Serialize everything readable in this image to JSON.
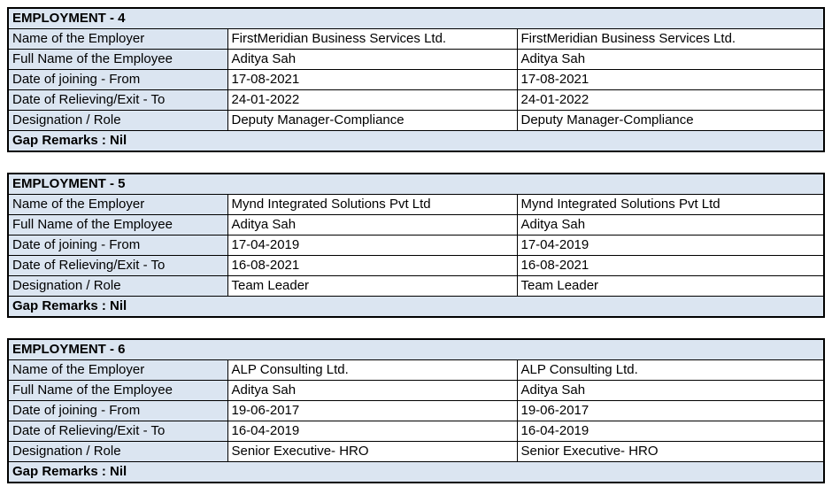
{
  "colors": {
    "shaded_bg": "#dbe5f1",
    "cell_bg": "#ffffff",
    "border": "#000000",
    "text": "#000000",
    "page_bg": "#ffffff"
  },
  "tables": [
    {
      "title": "EMPLOYMENT - 4",
      "rows": [
        {
          "label": "Name of the Employer",
          "values": [
            "FirstMeridian Business Services Ltd.",
            "FirstMeridian Business Services Ltd."
          ]
        },
        {
          "label": "Full Name of the Employee",
          "values": [
            "Aditya Sah",
            "Aditya Sah"
          ]
        },
        {
          "label": "Date of joining - From",
          "values": [
            "17-08-2021",
            "17-08-2021"
          ]
        },
        {
          "label": "Date of Relieving/Exit - To",
          "values": [
            "24-01-2022",
            "24-01-2022"
          ]
        },
        {
          "label": "Designation / Role",
          "values": [
            "Deputy Manager-Compliance",
            "Deputy Manager-Compliance"
          ]
        }
      ],
      "footer": "Gap Remarks : Nil"
    },
    {
      "title": "EMPLOYMENT - 5",
      "rows": [
        {
          "label": "Name of the Employer",
          "values": [
            "Mynd Integrated Solutions Pvt Ltd",
            "Mynd Integrated Solutions Pvt Ltd"
          ]
        },
        {
          "label": "Full Name of the Employee",
          "values": [
            "Aditya Sah",
            "Aditya Sah"
          ]
        },
        {
          "label": "Date of joining - From",
          "values": [
            "17-04-2019",
            "17-04-2019"
          ]
        },
        {
          "label": "Date of Relieving/Exit - To",
          "values": [
            "16-08-2021",
            "16-08-2021"
          ]
        },
        {
          "label": "Designation / Role",
          "values": [
            "Team Leader",
            "Team Leader"
          ]
        }
      ],
      "footer": "Gap Remarks : Nil"
    },
    {
      "title": "EMPLOYMENT - 6",
      "rows": [
        {
          "label": "Name of the Employer",
          "values": [
            "ALP Consulting Ltd.",
            "ALP Consulting Ltd."
          ]
        },
        {
          "label": "Full Name of the Employee",
          "values": [
            "Aditya Sah",
            "Aditya Sah"
          ]
        },
        {
          "label": "Date of joining - From",
          "values": [
            "19-06-2017",
            "19-06-2017"
          ]
        },
        {
          "label": "Date of Relieving/Exit - To",
          "values": [
            "16-04-2019",
            "16-04-2019"
          ]
        },
        {
          "label": "Designation / Role",
          "values": [
            "Senior Executive- HRO",
            "Senior Executive- HRO"
          ]
        }
      ],
      "footer": "Gap Remarks : Nil"
    }
  ]
}
